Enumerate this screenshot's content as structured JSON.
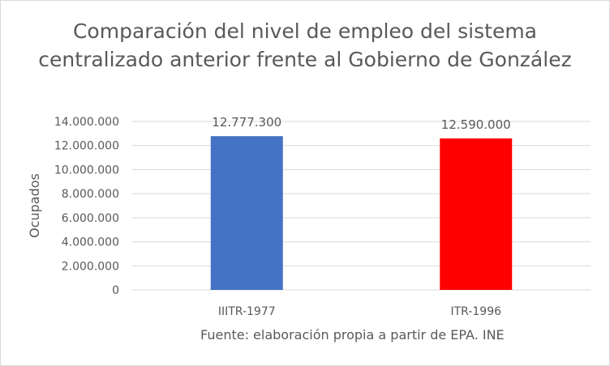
{
  "chart_data": {
    "type": "bar",
    "title": "Comparación del nivel de empleo del sistema centralizado anterior frente al Gobierno de González",
    "xlabel": "",
    "ylabel": "Ocupados",
    "categories": [
      "IIITR-1977",
      "ITR-1996"
    ],
    "values": [
      12777300,
      12590000
    ],
    "data_labels": [
      "12.777.300",
      "12.590.000"
    ],
    "bar_colors": [
      "#4472c4",
      "#ff0000"
    ],
    "ylim": [
      0,
      14000000
    ],
    "yticks": [
      0,
      2000000,
      4000000,
      6000000,
      8000000,
      10000000,
      12000000,
      14000000
    ],
    "ytick_labels": [
      "0",
      "2.000.000",
      "4.000.000",
      "6.000.000",
      "8.000.000",
      "10.000.000",
      "12.000.000",
      "14.000.000"
    ],
    "grid": true,
    "legend": "none"
  },
  "note": "Fuente: elaboración propia a partir de EPA. INE",
  "colors": {
    "grid": "#d9d9d9",
    "text": "#595959"
  }
}
